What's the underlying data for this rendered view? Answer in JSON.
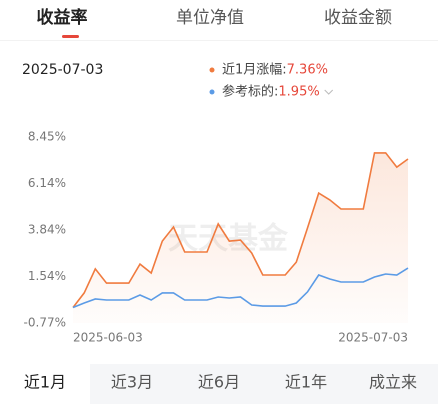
{
  "tabs": [
    "收益率",
    "单位净值",
    "收益金额"
  ],
  "date": "2025-07-03",
  "watermark": "天天基金",
  "chart_data": {
    "type": "line",
    "categories": [
      "2025-06-03",
      null,
      null,
      null,
      null,
      null,
      null,
      null,
      null,
      null,
      null,
      null,
      null,
      null,
      null,
      null,
      null,
      null,
      null,
      null,
      null,
      null,
      null,
      null,
      null,
      null,
      null,
      null,
      null,
      null,
      "2025-07-03"
    ],
    "series": [
      {
        "name": "近1月涨幅:",
        "value_label": "7.36%",
        "color": "#f07b3f",
        "values": [
          0,
          0.72,
          1.91,
          1.21,
          1.21,
          1.21,
          2.15,
          1.71,
          3.29,
          3.99,
          2.75,
          2.75,
          2.75,
          4.14,
          3.29,
          3.34,
          2.7,
          1.61,
          1.61,
          1.61,
          2.25,
          3.94,
          5.67,
          5.33,
          4.88,
          4.88,
          4.88,
          7.66,
          7.66,
          6.96,
          7.36
        ]
      },
      {
        "name": "参考标的:",
        "value_label": "1.95%",
        "color": "#5b9be6",
        "values": [
          0,
          0.22,
          0.42,
          0.37,
          0.37,
          0.37,
          0.62,
          0.37,
          0.72,
          0.72,
          0.37,
          0.37,
          0.37,
          0.52,
          0.47,
          0.52,
          0.12,
          0.07,
          0.07,
          0.07,
          0.22,
          0.77,
          1.61,
          1.41,
          1.26,
          1.26,
          1.26,
          1.51,
          1.66,
          1.61,
          1.95
        ]
      }
    ],
    "ylim": [
      -0.77,
      8.45
    ],
    "yticks": [
      {
        "value": 8.45,
        "label": "8.45%"
      },
      {
        "value": 6.14,
        "label": "6.14%"
      },
      {
        "value": 3.84,
        "label": "3.84%"
      },
      {
        "value": 1.54,
        "label": "1.54%"
      },
      {
        "value": -0.77,
        "label": "-0.77%"
      }
    ],
    "grid": false
  },
  "periods": [
    "近1月",
    "近3月",
    "近6月",
    "近1年",
    "成立来"
  ],
  "active_period": 0
}
